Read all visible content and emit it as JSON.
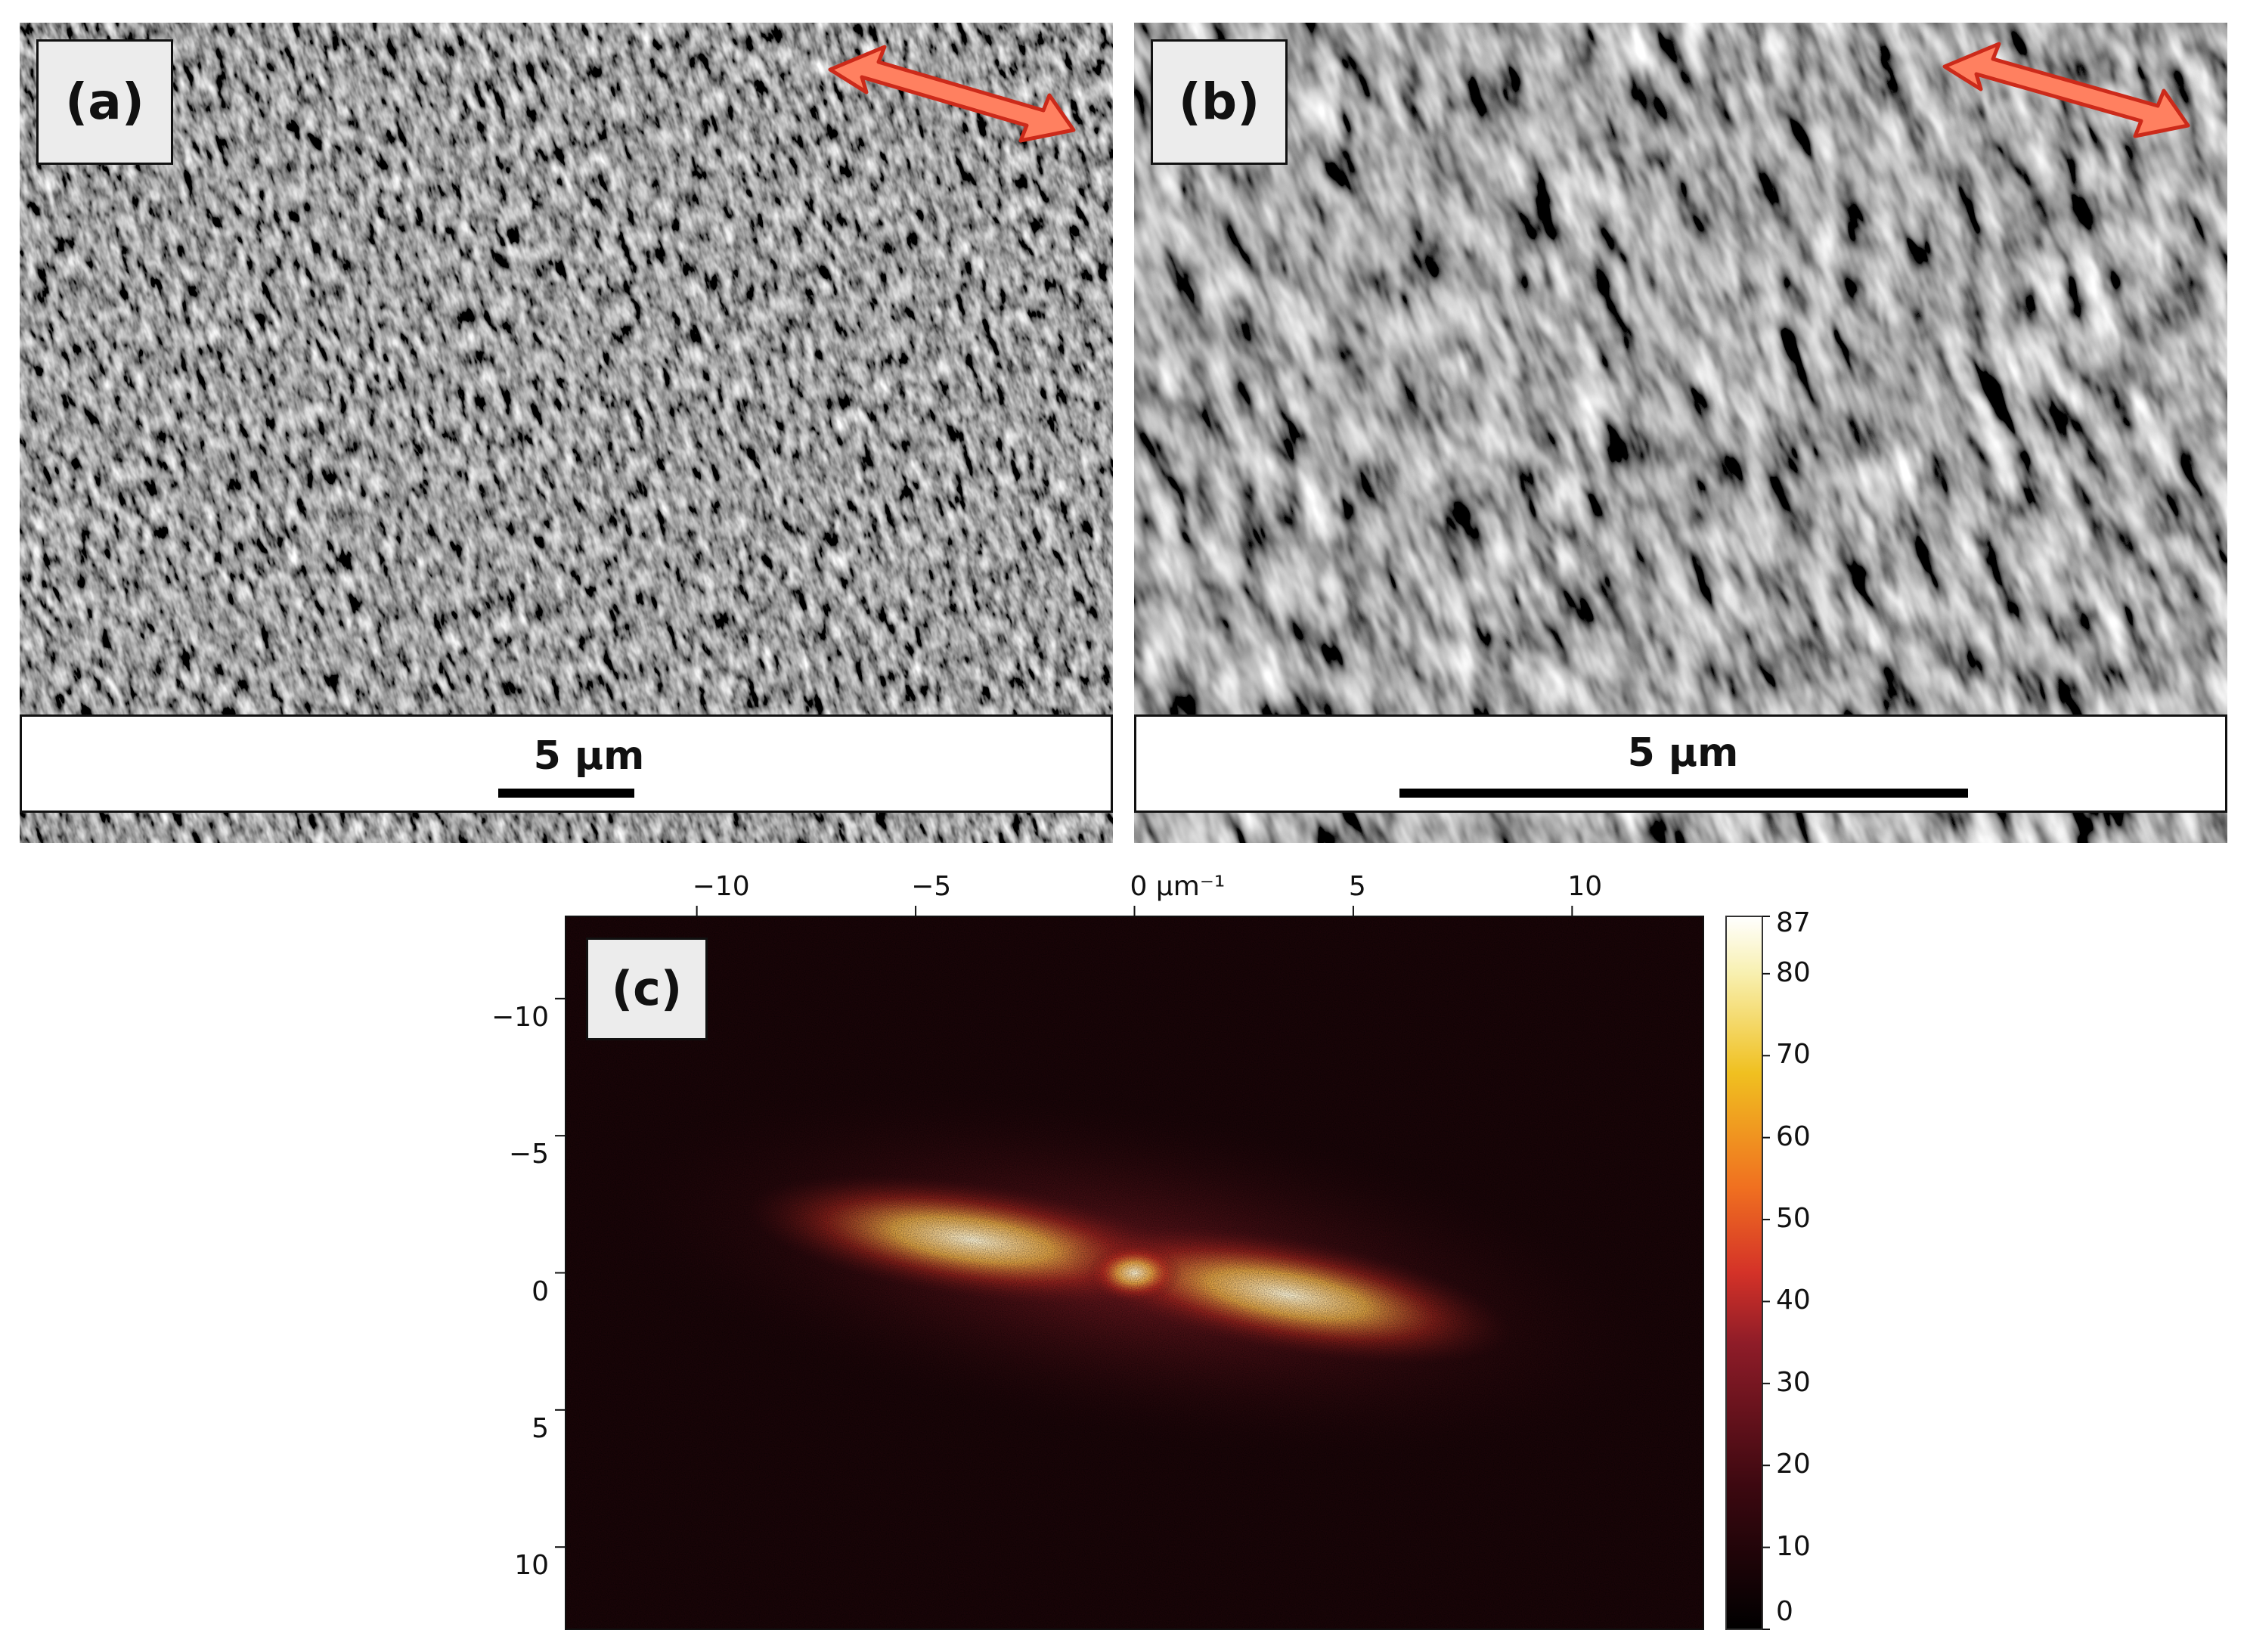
{
  "panels": {
    "a": {
      "label": "(a)",
      "scale_label": "5 µm"
    },
    "b": {
      "label": "(b)",
      "scale_label": "5 µm"
    },
    "c": {
      "label": "(c)"
    }
  },
  "colors": {
    "arrow_fill": "#ff8060",
    "arrow_stroke": "#cc2a1a",
    "fft_dark": "#1a0508",
    "fft_bright": "#ffffff"
  },
  "chart_data": {
    "type": "heatmap",
    "title": "",
    "x_axis": {
      "ticks": [
        -10,
        -5,
        0,
        5,
        10
      ],
      "tick_labels": [
        "−10",
        "−5",
        "0 µm⁻¹",
        "5",
        "10"
      ],
      "range": [
        -13,
        13
      ],
      "position": "top"
    },
    "y_axis": {
      "ticks": [
        -10,
        -5,
        0,
        5,
        10
      ],
      "tick_labels": [
        "−10",
        "−5",
        "0",
        "5",
        "10"
      ],
      "range": [
        -13,
        13
      ]
    },
    "colorbar": {
      "min": 0,
      "max": 87,
      "ticks": [
        0,
        10,
        20,
        30,
        40,
        50,
        60,
        70,
        80,
        87
      ],
      "tick_labels": [
        "0",
        "10",
        "20",
        "30",
        "40",
        "50",
        "60",
        "70",
        "80",
        "87"
      ],
      "colormap": [
        [
          0,
          "#000000"
        ],
        [
          0.2,
          "#3c0810"
        ],
        [
          0.4,
          "#8e1c28"
        ],
        [
          0.5,
          "#d43228"
        ],
        [
          0.62,
          "#f07020"
        ],
        [
          0.78,
          "#f0c020"
        ],
        [
          0.92,
          "#f8f0b0"
        ],
        [
          1.0,
          "#ffffff"
        ]
      ]
    }
  }
}
